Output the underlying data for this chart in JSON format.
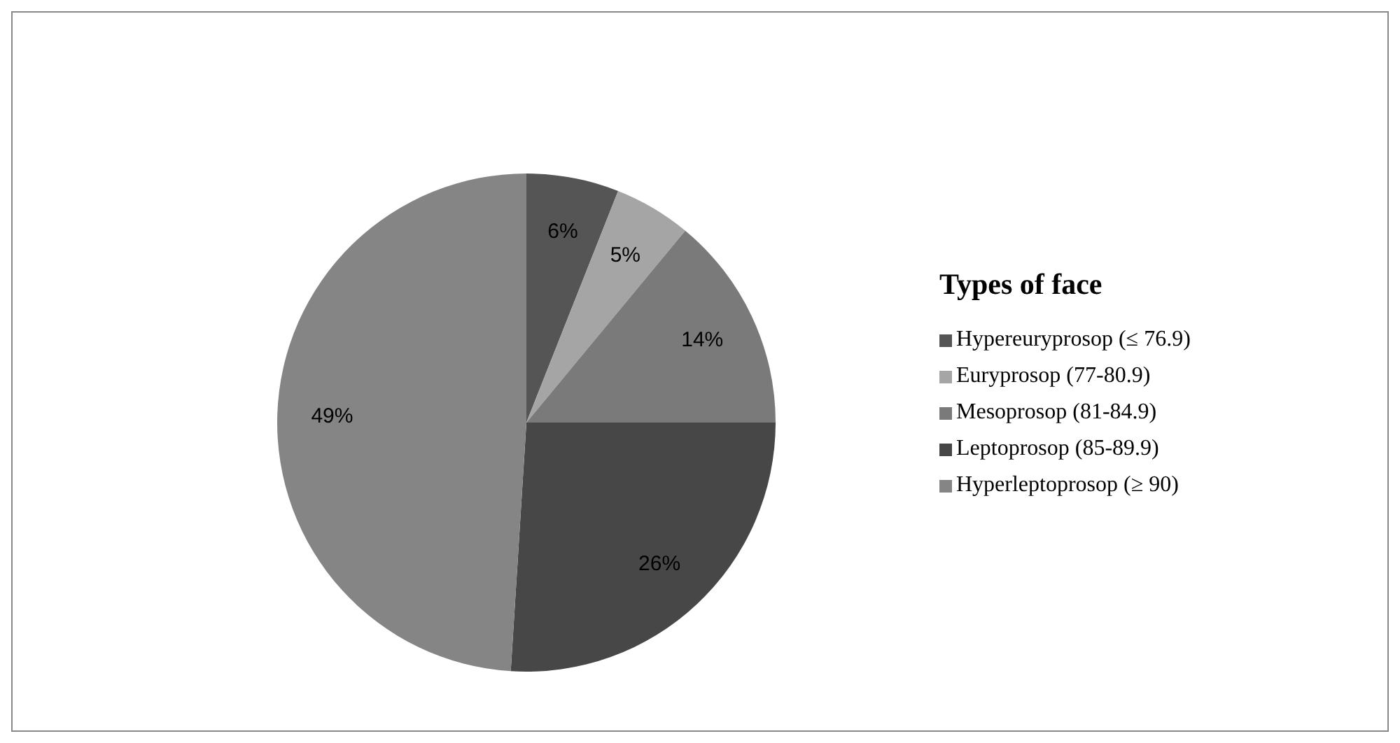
{
  "chart_data": {
    "type": "pie",
    "legend_title": "Types of face",
    "categories": [
      "Hypereuryprosop (≤ 76.9)",
      "Euryprosop (77-80.9)",
      "Mesoprosop (81-84.9)",
      "Leptoprosop (85-89.9)",
      "Hyperleptoprosop (≥ 90)"
    ],
    "values": [
      6,
      5,
      14,
      26,
      49
    ],
    "colors": [
      "#555555",
      "#a5a5a5",
      "#7a7a7a",
      "#474747",
      "#858585"
    ],
    "value_labels": [
      "6%",
      "5%",
      "14%",
      "26%",
      "49%"
    ],
    "legend": "right"
  }
}
